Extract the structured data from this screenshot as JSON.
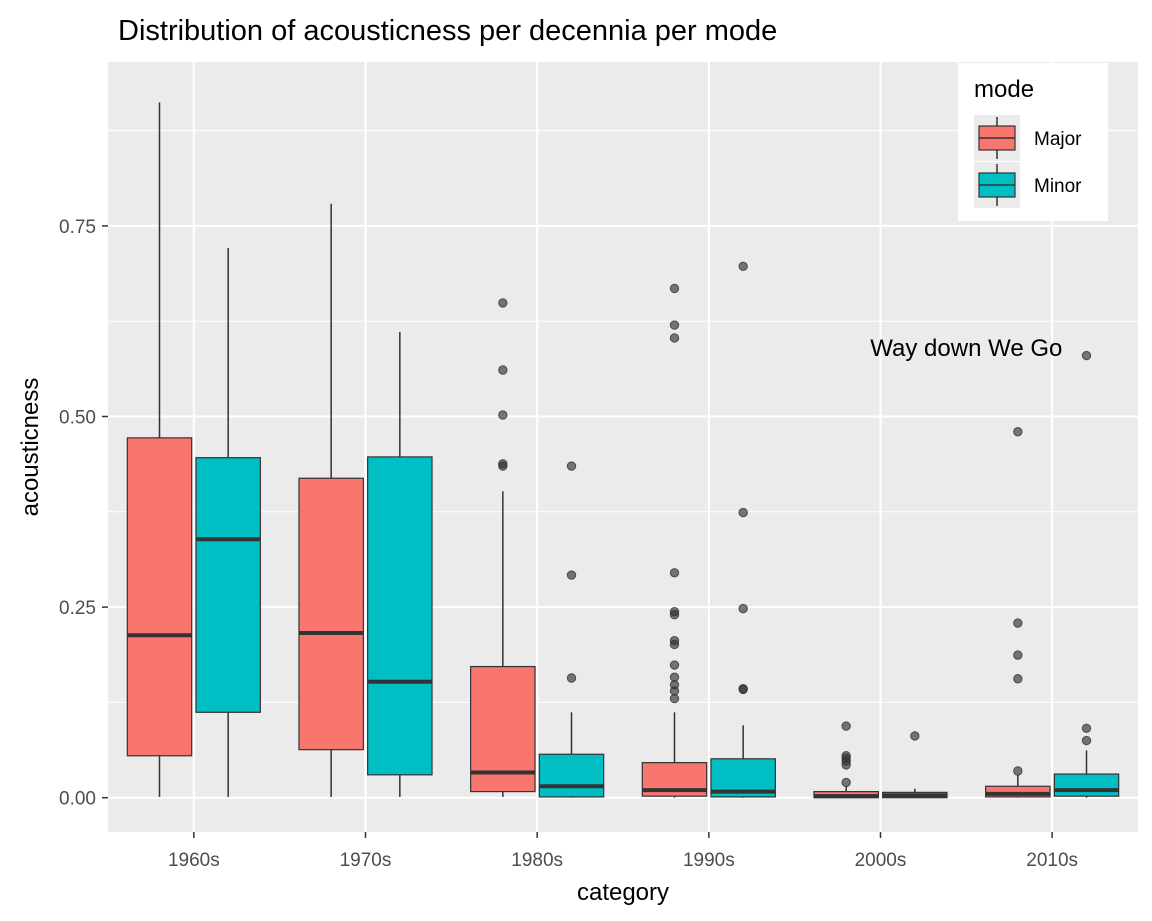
{
  "chart_data": {
    "type": "boxplot",
    "title": "Distribution of acousticness per decennia per mode",
    "xlabel": "category",
    "ylabel": "acousticness",
    "categories": [
      "1960s",
      "1970s",
      "1980s",
      "1990s",
      "2000s",
      "2010s"
    ],
    "ylim": [
      -0.045,
      0.965
    ],
    "yticks": [
      0.0,
      0.25,
      0.5,
      0.75
    ],
    "ytick_labels": [
      "0.00",
      "0.25",
      "0.50",
      "0.75"
    ],
    "grid": true,
    "legend": {
      "title": "mode",
      "position": "top-right",
      "entries": [
        "Major",
        "Minor"
      ]
    },
    "annotation": {
      "text": "Way down We Go",
      "x": 5.5,
      "y": 0.59
    },
    "series": [
      {
        "name": "Major",
        "color": "#F8766D",
        "boxes": [
          {
            "category": "1960s",
            "min": 0.001,
            "q1": 0.055,
            "median": 0.213,
            "q3": 0.472,
            "max": 0.912,
            "outliers": []
          },
          {
            "category": "1970s",
            "min": 0.001,
            "q1": 0.063,
            "median": 0.216,
            "q3": 0.419,
            "max": 0.779,
            "outliers": []
          },
          {
            "category": "1980s",
            "min": 0.001,
            "q1": 0.008,
            "median": 0.033,
            "q3": 0.172,
            "max": 0.402,
            "outliers": [
              0.435,
              0.438,
              0.502,
              0.561,
              0.649
            ]
          },
          {
            "category": "1990s",
            "min": 0.0,
            "q1": 0.002,
            "median": 0.01,
            "q3": 0.046,
            "max": 0.112,
            "outliers": [
              0.13,
              0.14,
              0.148,
              0.158,
              0.174,
              0.201,
              0.206,
              0.24,
              0.244,
              0.295,
              0.603,
              0.62,
              0.668
            ]
          },
          {
            "category": "2000s",
            "min": 0.0,
            "q1": 0.0,
            "median": 0.002,
            "q3": 0.008,
            "max": 0.015,
            "outliers": [
              0.02,
              0.043,
              0.048,
              0.052,
              0.055,
              0.094
            ]
          },
          {
            "category": "2010s",
            "min": 0.0,
            "q1": 0.001,
            "median": 0.005,
            "q3": 0.015,
            "max": 0.03,
            "outliers": [
              0.035,
              0.156,
              0.187,
              0.229,
              0.48
            ]
          }
        ]
      },
      {
        "name": "Minor",
        "color": "#00BFC4",
        "boxes": [
          {
            "category": "1960s",
            "min": 0.001,
            "q1": 0.112,
            "median": 0.339,
            "q3": 0.446,
            "max": 0.721,
            "outliers": []
          },
          {
            "category": "1970s",
            "min": 0.001,
            "q1": 0.03,
            "median": 0.152,
            "q3": 0.447,
            "max": 0.611,
            "outliers": []
          },
          {
            "category": "1980s",
            "min": 0.0,
            "q1": 0.001,
            "median": 0.015,
            "q3": 0.057,
            "max": 0.112,
            "outliers": [
              0.157,
              0.292,
              0.435
            ]
          },
          {
            "category": "1990s",
            "min": 0.0,
            "q1": 0.001,
            "median": 0.008,
            "q3": 0.051,
            "max": 0.095,
            "outliers": [
              0.142,
              0.143,
              0.248,
              0.374,
              0.697
            ]
          },
          {
            "category": "2000s",
            "min": 0.0,
            "q1": 0.0,
            "median": 0.003,
            "q3": 0.007,
            "max": 0.012,
            "outliers": [
              0.081
            ]
          },
          {
            "category": "2010s",
            "min": 0.0,
            "q1": 0.002,
            "median": 0.01,
            "q3": 0.031,
            "max": 0.062,
            "outliers": [
              0.075,
              0.091,
              0.58
            ]
          }
        ]
      }
    ]
  }
}
